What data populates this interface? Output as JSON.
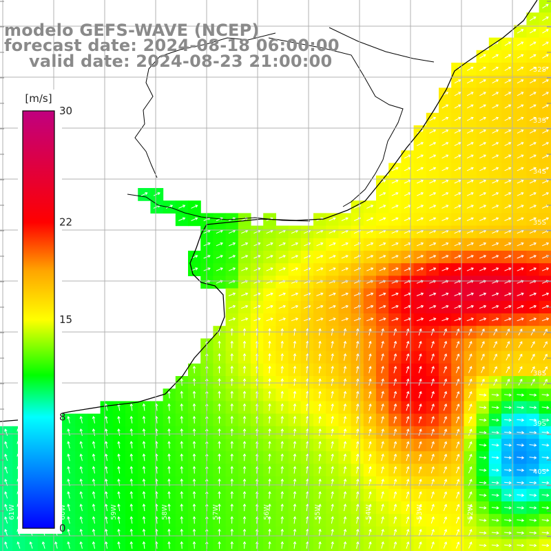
{
  "title": {
    "model": "modelo GEFS-WAVE (NCEP)",
    "forecast": "forecast date: 2024-08-18 06:00:00",
    "valid": "valid date: 2024-08-23 21:00:00"
  },
  "colorbar": {
    "unit": "[m/s]",
    "min": 0,
    "max": 30,
    "ticks": [
      {
        "value": 30,
        "label": "30"
      },
      {
        "value": 22,
        "label": "22"
      },
      {
        "value": 15,
        "label": "15"
      },
      {
        "value": 8,
        "label": "8"
      },
      {
        "value": 0,
        "label": "0"
      }
    ],
    "stops": [
      {
        "value": 0,
        "color": "#0000ff"
      },
      {
        "value": 8,
        "color": "#00ffff"
      },
      {
        "value": 11,
        "color": "#00ff00"
      },
      {
        "value": 15,
        "color": "#ffff00"
      },
      {
        "value": 18.5,
        "color": "#ffa500"
      },
      {
        "value": 22,
        "color": "#ff0000"
      },
      {
        "value": 30,
        "color": "#c0007f"
      }
    ]
  },
  "map": {
    "lon_labels": [
      "61W",
      "60W",
      "59W",
      "58W",
      "57W",
      "56W",
      "55W",
      "54W",
      "53W",
      "52W"
    ],
    "lat_labels": [
      "32S",
      "33S",
      "34S",
      "35S",
      "38S",
      "39S",
      "40S"
    ],
    "land_color": "#ffffff",
    "coast_color": "#000000",
    "grid_color": "#b0b0b0",
    "arrow_color": "#ffffff"
  }
}
